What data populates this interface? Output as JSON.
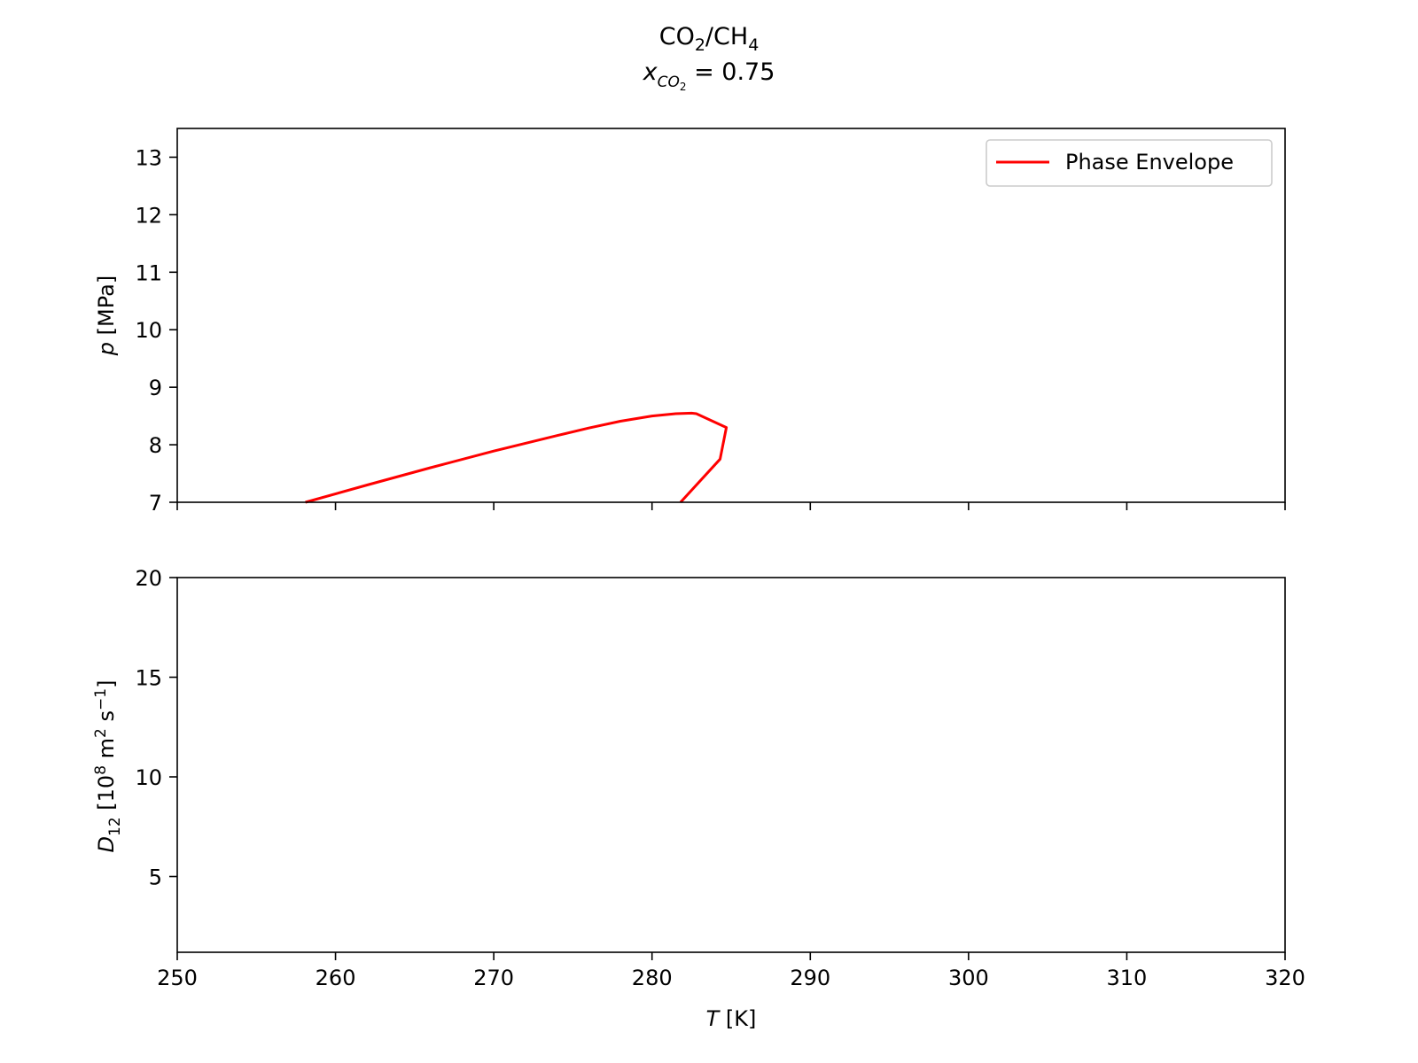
{
  "figure": {
    "title_line1": {
      "a": "CO",
      "a_sub": "2",
      "b": "/CH",
      "b_sub": "4"
    },
    "title_line2": {
      "var": "x",
      "var_sub": "CO",
      "var_sub_sub": "2",
      "rest": " = 0.75"
    },
    "shared_xlabel": {
      "var": "T",
      "rest": " [K]"
    }
  },
  "chart_data": [
    {
      "type": "line",
      "name": "pressure-panel",
      "title": "CO2/CH4 x_CO2 = 0.75",
      "xlabel": "T [K]",
      "ylabel": {
        "var": "p",
        "rest": " [MPa]"
      },
      "xlim": [
        250,
        320
      ],
      "ylim": [
        7,
        13.5
      ],
      "xticks": [
        250,
        260,
        270,
        280,
        290,
        300,
        310,
        320
      ],
      "yticks": [
        7,
        8,
        9,
        10,
        11,
        12,
        13
      ],
      "show_x_ticklabels": false,
      "grid": false,
      "legend": {
        "location": "top-right",
        "entries": [
          "Phase Envelope"
        ]
      },
      "series": [
        {
          "name": "Phase Envelope",
          "color": "#ff0000",
          "x": [
            258.1,
            262.0,
            266.0,
            270.0,
            274.0,
            276.0,
            278.0,
            280.0,
            281.5,
            282.5,
            282.8,
            284.7,
            284.3,
            281.8
          ],
          "y": [
            7.0,
            7.3,
            7.6,
            7.89,
            8.16,
            8.29,
            8.41,
            8.5,
            8.54,
            8.55,
            8.54,
            8.3,
            7.75,
            7.0
          ]
        }
      ]
    },
    {
      "type": "line",
      "name": "diffusion-panel",
      "xlabel": "T [K]",
      "ylabel": {
        "var": "D",
        "var_sub": "12",
        "rest1": " [10",
        "sup1": "8",
        "rest2": " m",
        "sup2": "2",
        "rest3": " s",
        "sup3": "−1",
        "rest4": "]"
      },
      "xlim": [
        250,
        320
      ],
      "ylim": [
        1.2,
        20
      ],
      "xticks": [
        250,
        260,
        270,
        280,
        290,
        300,
        310,
        320
      ],
      "yticks": [
        5,
        10,
        15,
        20
      ],
      "show_x_ticklabels": true,
      "grid": false,
      "series": []
    }
  ]
}
